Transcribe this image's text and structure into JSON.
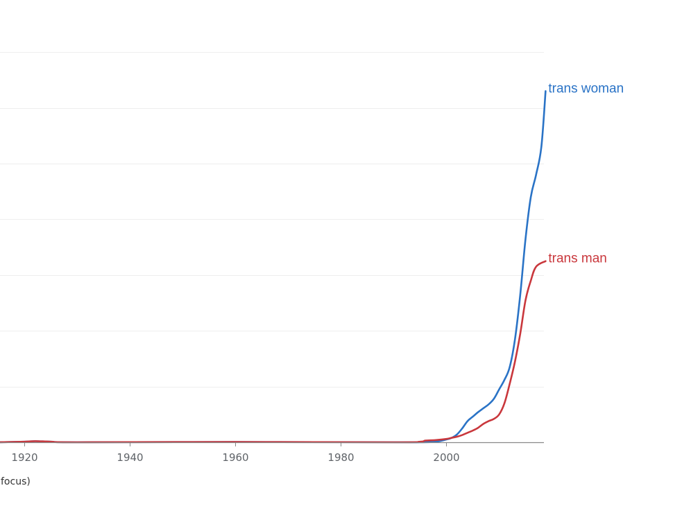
{
  "chart_data": {
    "type": "line",
    "grid": true,
    "xlim": [
      1915,
      2019
    ],
    "ylim": [
      0,
      7.5
    ],
    "x_ticks": [
      1920,
      1940,
      1960,
      1980,
      2000
    ],
    "y_gridlines": [
      1,
      2,
      3,
      4,
      5,
      6,
      7
    ],
    "series": [
      {
        "name": "trans woman",
        "color": "#2a73c6",
        "points": [
          [
            1915,
            0
          ],
          [
            1920,
            0.01
          ],
          [
            1922,
            0.02
          ],
          [
            1925,
            0.01
          ],
          [
            1930,
            0
          ],
          [
            1960,
            0.005
          ],
          [
            1990,
            0
          ],
          [
            1995,
            0
          ],
          [
            1998,
            0.01
          ],
          [
            2000,
            0.05
          ],
          [
            2001,
            0.08
          ],
          [
            2002,
            0.14
          ],
          [
            2003,
            0.25
          ],
          [
            2004,
            0.38
          ],
          [
            2005,
            0.46
          ],
          [
            2006,
            0.54
          ],
          [
            2007,
            0.61
          ],
          [
            2008,
            0.68
          ],
          [
            2009,
            0.78
          ],
          [
            2010,
            0.95
          ],
          [
            2011,
            1.12
          ],
          [
            2012,
            1.35
          ],
          [
            2013,
            1.85
          ],
          [
            2014,
            2.65
          ],
          [
            2015,
            3.65
          ],
          [
            2016,
            4.4
          ],
          [
            2017,
            4.8
          ],
          [
            2018,
            5.3
          ],
          [
            2018.8,
            6.3
          ]
        ]
      },
      {
        "name": "trans man",
        "color": "#c9373c",
        "points": [
          [
            1915,
            0
          ],
          [
            1920,
            0.01
          ],
          [
            1922,
            0.02
          ],
          [
            1925,
            0.01
          ],
          [
            1930,
            0
          ],
          [
            1960,
            0.005
          ],
          [
            1990,
            0
          ],
          [
            1995,
            0.01
          ],
          [
            1996,
            0.03
          ],
          [
            1998,
            0.04
          ],
          [
            2000,
            0.06
          ],
          [
            2001,
            0.08
          ],
          [
            2002,
            0.1
          ],
          [
            2003,
            0.13
          ],
          [
            2004,
            0.17
          ],
          [
            2005,
            0.21
          ],
          [
            2006,
            0.26
          ],
          [
            2007,
            0.33
          ],
          [
            2008,
            0.38
          ],
          [
            2009,
            0.42
          ],
          [
            2010,
            0.5
          ],
          [
            2011,
            0.7
          ],
          [
            2012,
            1.05
          ],
          [
            2013,
            1.45
          ],
          [
            2014,
            1.95
          ],
          [
            2015,
            2.55
          ],
          [
            2016,
            2.9
          ],
          [
            2017,
            3.15
          ],
          [
            2018.8,
            3.25
          ]
        ]
      }
    ],
    "footnote": "focus)"
  }
}
